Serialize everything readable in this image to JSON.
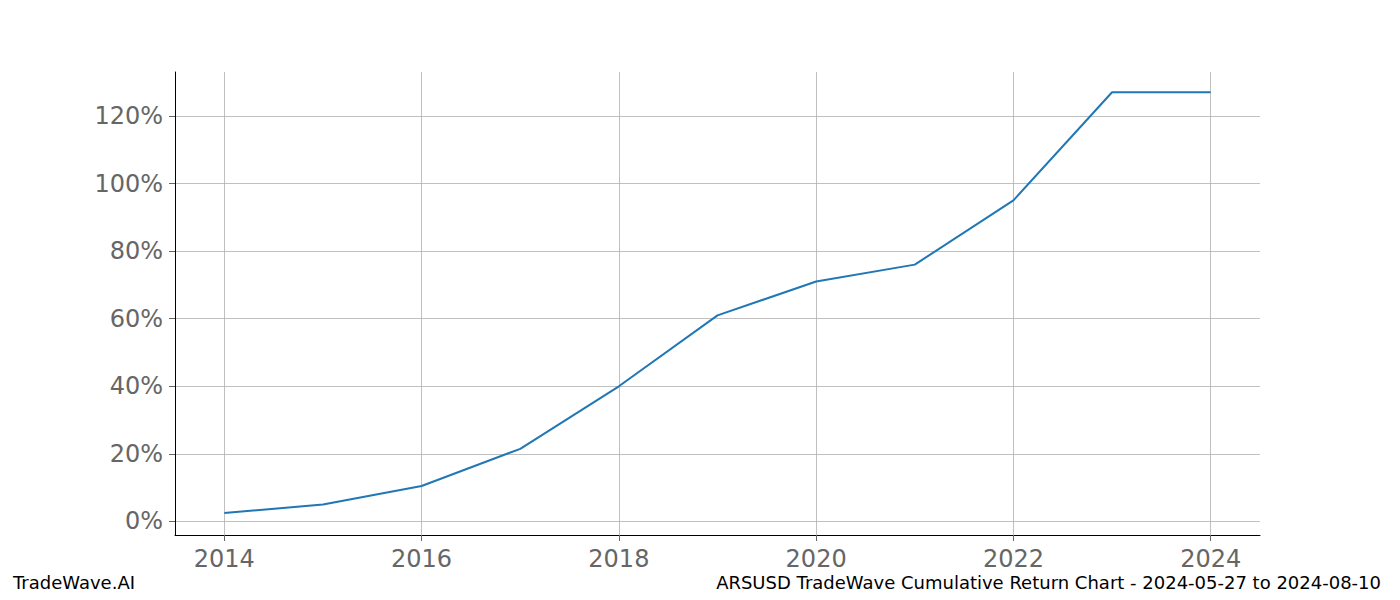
{
  "chart_data": {
    "type": "line",
    "title": "ARSUSD TradeWave Cumulative Return Chart - 2024-05-27 to 2024-08-10",
    "subtitle": "TradeWave.AI",
    "x": [
      2014,
      2015,
      2016,
      2017,
      2018,
      2019,
      2020,
      2021,
      2022,
      2023,
      2024
    ],
    "values": [
      2.5,
      5,
      10.5,
      21.5,
      40,
      61,
      71,
      76,
      95,
      127,
      127
    ],
    "color": "#1f77b4",
    "xlim": [
      2013.5,
      2024.5
    ],
    "xticks": [
      2014,
      2016,
      2018,
      2020,
      2022,
      2024
    ],
    "ylim": [
      -4,
      133
    ],
    "yticks": [
      {
        "value": 0,
        "label": "0%"
      },
      {
        "value": 20,
        "label": "20%"
      },
      {
        "value": 40,
        "label": "40%"
      },
      {
        "value": 60,
        "label": "60%"
      },
      {
        "value": 80,
        "label": "80%"
      },
      {
        "value": 100,
        "label": "100%"
      },
      {
        "value": 120,
        "label": "120%"
      }
    ],
    "grid": true
  }
}
